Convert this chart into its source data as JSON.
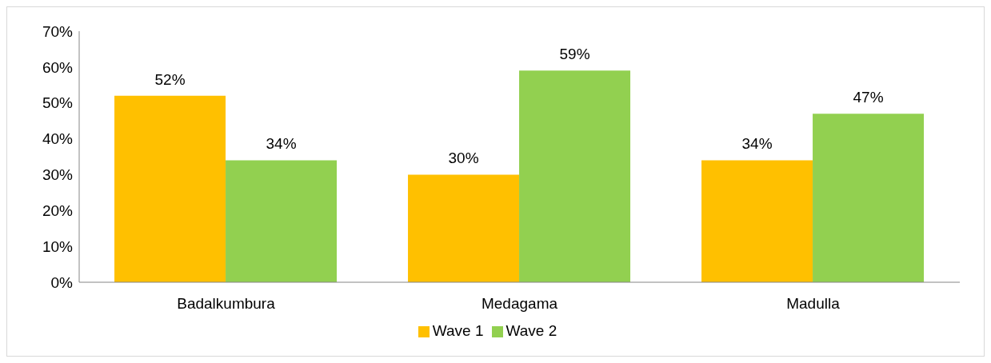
{
  "chart_data": {
    "type": "bar",
    "categories": [
      "Badalkumbura",
      "Medagama",
      "Madulla"
    ],
    "series": [
      {
        "name": "Wave 1",
        "color": "#ffc000",
        "values": [
          52,
          30,
          34
        ],
        "value_labels": [
          "52%",
          "30%",
          "34%"
        ]
      },
      {
        "name": "Wave 2",
        "color": "#92d050",
        "values": [
          34,
          59,
          47
        ],
        "value_labels": [
          "34%",
          "59%",
          "47%"
        ]
      }
    ],
    "ylim": [
      0,
      70
    ],
    "yticks": [
      {
        "value": 0,
        "label": "0%"
      },
      {
        "value": 10,
        "label": "10%"
      },
      {
        "value": 20,
        "label": "20%"
      },
      {
        "value": 30,
        "label": "30%"
      },
      {
        "value": 40,
        "label": "40%"
      },
      {
        "value": 50,
        "label": "50%"
      },
      {
        "value": 60,
        "label": "60%"
      },
      {
        "value": 70,
        "label": "70%"
      }
    ],
    "grid": false,
    "legend": "bottom"
  }
}
